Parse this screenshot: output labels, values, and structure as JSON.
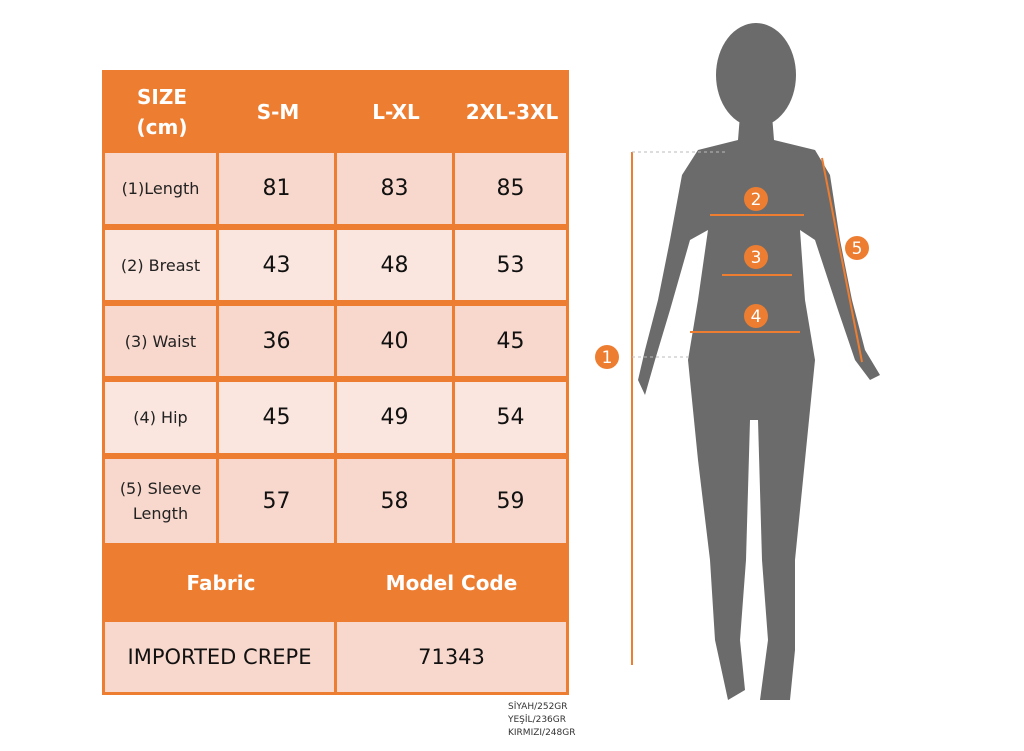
{
  "table": {
    "header": [
      "SIZE\n(cm)",
      "S-M",
      "L-XL",
      "2XL-3XL"
    ],
    "header_size_line1": "SIZE",
    "header_size_line2": "(cm)",
    "rows": [
      {
        "label": "(1)Length",
        "values": [
          "81",
          "83",
          "85"
        ]
      },
      {
        "label": "(2) Breast",
        "values": [
          "43",
          "48",
          "53"
        ]
      },
      {
        "label": "(3) Waist",
        "values": [
          "36",
          "40",
          "45"
        ]
      },
      {
        "label": "(4) Hip",
        "values": [
          "45",
          "49",
          "54"
        ]
      },
      {
        "label_line1": "(5) Sleeve",
        "label_line2": "Length",
        "values": [
          "57",
          "58",
          "59"
        ]
      }
    ],
    "fabric_header": "Fabric",
    "model_code_header": "Model Code",
    "fabric_value": "IMPORTED CREPE",
    "model_code_value": "71343"
  },
  "weights": [
    "SİYAH/252GR",
    "YEŞİL/236GR",
    "KIRMIZI/248GR"
  ],
  "figure_markers": [
    "1",
    "2",
    "3",
    "4",
    "5"
  ],
  "colors": {
    "accent": "#ed7d31",
    "cell_dark": "#f8d8cd",
    "cell_light": "#fbe6df",
    "silhouette": "#6b6b6b"
  }
}
